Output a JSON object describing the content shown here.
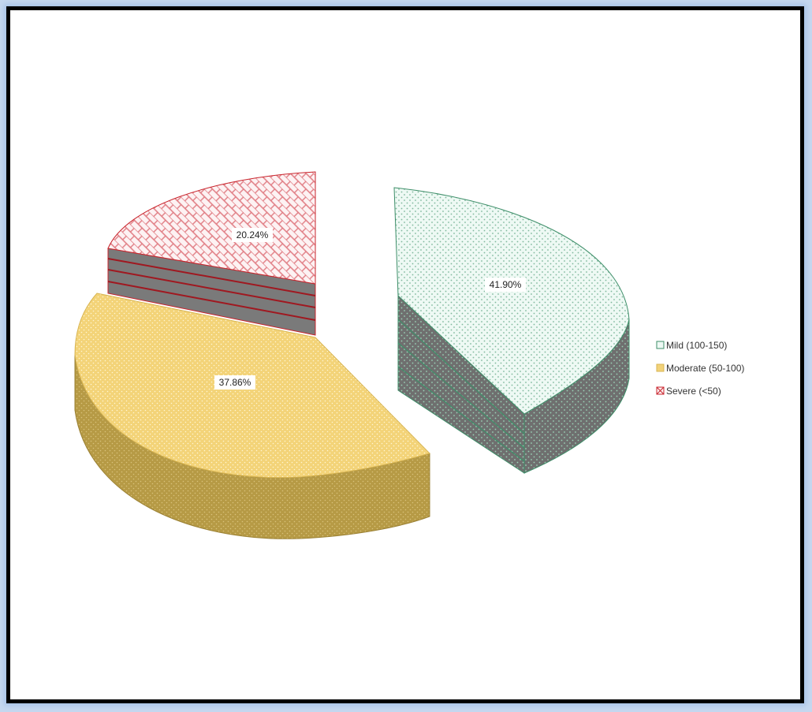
{
  "chart_data": {
    "type": "pie",
    "style": "3d-exploded",
    "title": "",
    "slices": [
      {
        "name": "Mild (100-150)",
        "value": 41.9,
        "label": "41.90%",
        "color": "#e9f7f1",
        "edge": "#3f8f6a"
      },
      {
        "name": "Moderate (50-100)",
        "value": 37.86,
        "label": "37.86%",
        "color": "#f2d279",
        "edge": "#c9a63f"
      },
      {
        "name": "Severe (<50)",
        "value": 20.24,
        "label": "20.24%",
        "color": "#fbe3e7",
        "edge": "#c8242c"
      }
    ],
    "legend": {
      "position": "right"
    }
  }
}
